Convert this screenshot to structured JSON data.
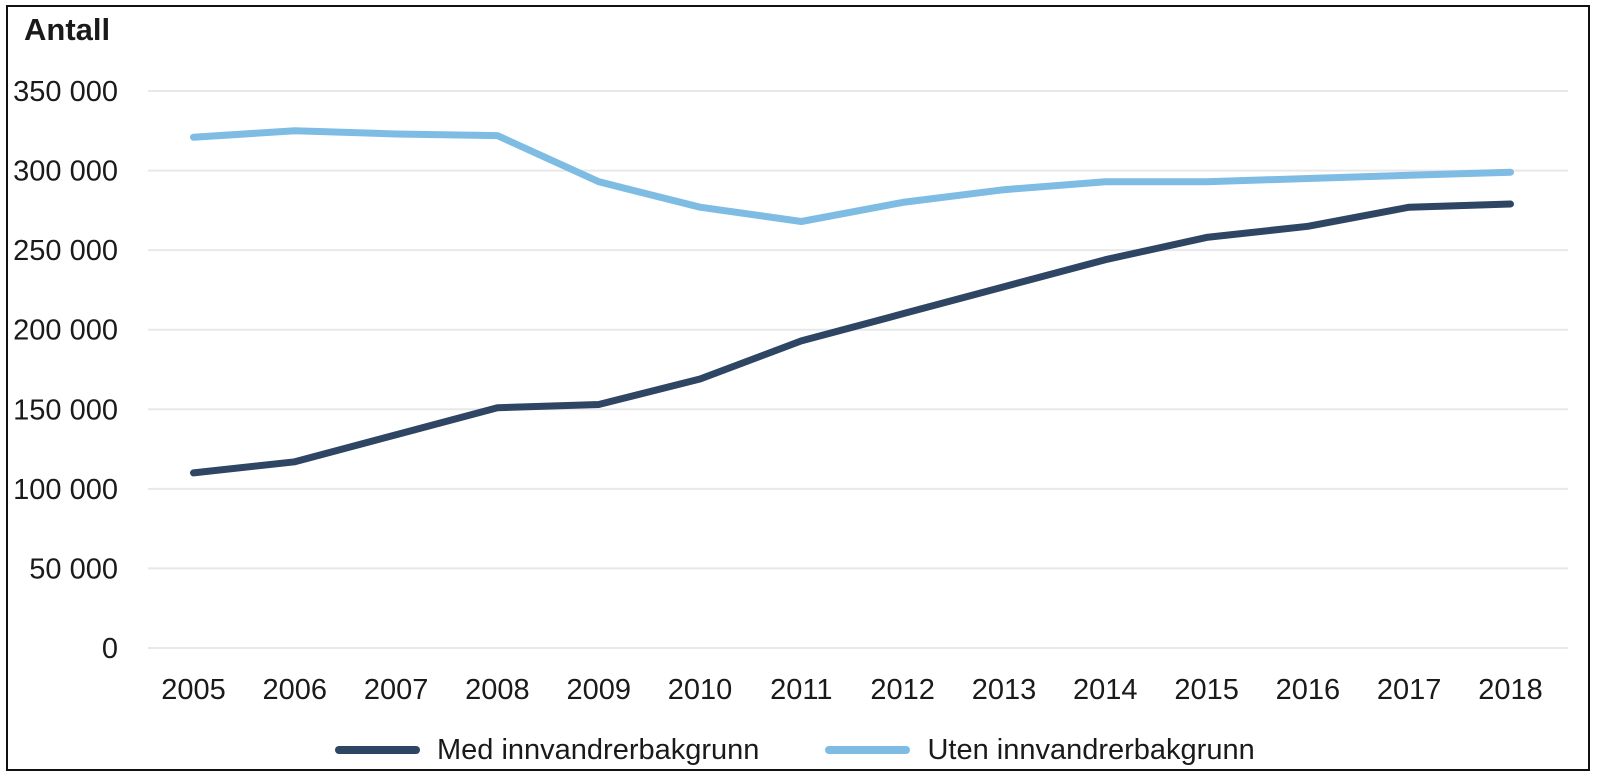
{
  "chart_data": {
    "type": "line",
    "title": "Antall",
    "x": [
      2005,
      2006,
      2007,
      2008,
      2009,
      2010,
      2011,
      2012,
      2013,
      2014,
      2015,
      2016,
      2017,
      2018
    ],
    "series": [
      {
        "name": "Med innvandrerbakgrunn",
        "color": "#2E4563",
        "values": [
          110000,
          117000,
          134000,
          151000,
          153000,
          169000,
          193000,
          210000,
          227000,
          244000,
          258000,
          265000,
          277000,
          279000
        ]
      },
      {
        "name": "Uten innvandrerbakgrunn",
        "color": "#7FBCE4",
        "values": [
          321000,
          325000,
          323000,
          322000,
          293000,
          277000,
          268000,
          280000,
          288000,
          293000,
          293000,
          295000,
          297000,
          299000
        ]
      }
    ],
    "ylabel": "Antall",
    "xlabel": "",
    "ylim": [
      0,
      350000
    ],
    "ytick_step": 50000,
    "ytick_labels": [
      "0",
      "50 000",
      "100 000",
      "150 000",
      "200 000",
      "250 000",
      "300 000",
      "350 000"
    ],
    "grid": "horizontal-only",
    "legend_position": "bottom"
  },
  "styles": {
    "grid_color": "#e8e8e8",
    "axis_text_color": "#1a1a1a",
    "title_color": "#1a1a1a",
    "background": "#ffffff",
    "frame_border_color": "#111111"
  }
}
